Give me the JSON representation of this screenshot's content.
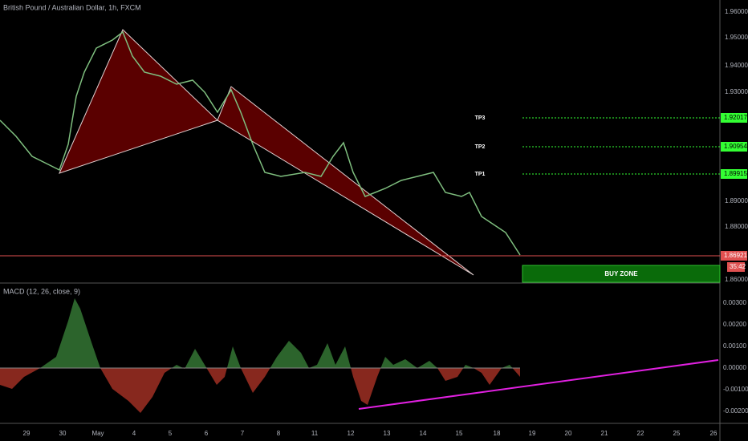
{
  "header": {
    "title": "British Pound / Australian Dollar, 1h, FXCM"
  },
  "price_axis": [
    "1.96000",
    "1.95000",
    "1.94000",
    "1.93000",
    "1.89000",
    "1.88000",
    "1.86000"
  ],
  "targets": [
    {
      "name": "TP3",
      "price": "1.92017"
    },
    {
      "name": "TP2",
      "price": "1.90954"
    },
    {
      "name": "TP1",
      "price": "1.89915"
    }
  ],
  "current_price": {
    "price": "1.86921",
    "countdown": "35:42"
  },
  "buy_zone": "BUY ZONE",
  "indicator": {
    "title": "MACD (12, 26, close, 9)",
    "axis": [
      "0.00300",
      "0.00200",
      "0.00100",
      "0.00000",
      "-0.00100",
      "-0.00200"
    ]
  },
  "time_axis": [
    "29",
    "30",
    "May",
    "4",
    "5",
    "6",
    "7",
    "8",
    "11",
    "12",
    "13",
    "14",
    "15",
    "18",
    "19",
    "20",
    "21",
    "22",
    "25",
    "26"
  ]
}
